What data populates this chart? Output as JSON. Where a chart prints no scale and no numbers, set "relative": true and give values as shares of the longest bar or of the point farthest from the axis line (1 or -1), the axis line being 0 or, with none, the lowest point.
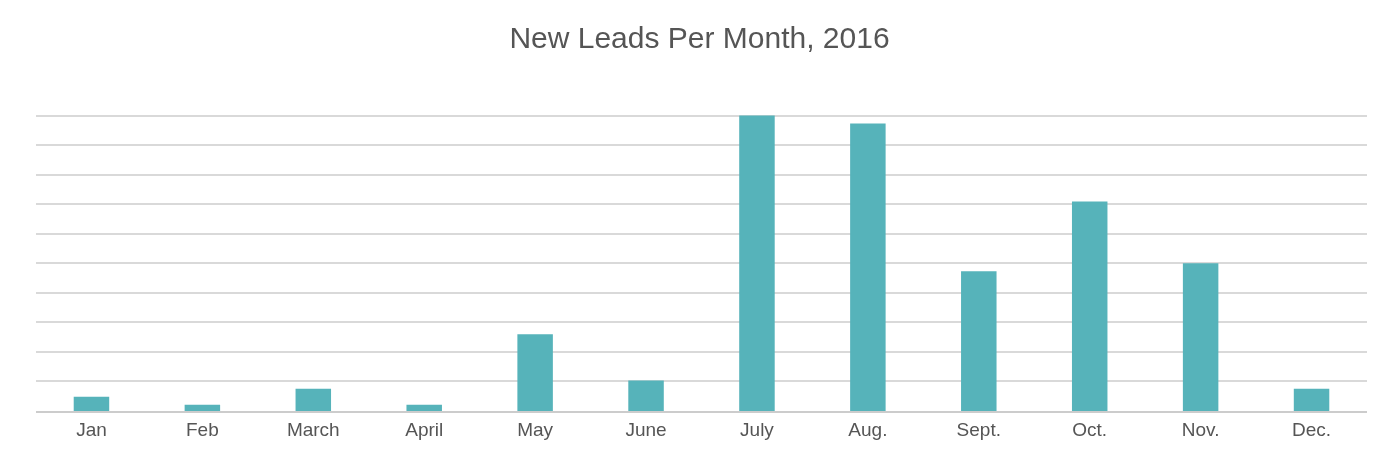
{
  "chart_data": {
    "type": "bar",
    "title": "New Leads Per Month, 2016",
    "categories": [
      "Jan",
      "Feb",
      "March",
      "April",
      "May",
      "June",
      "July",
      "Aug.",
      "Sept.",
      "Oct.",
      "Nov.",
      "Dec."
    ],
    "values": [
      0.048,
      0.021,
      0.075,
      0.021,
      0.26,
      0.103,
      1,
      0.973,
      0.473,
      0.709,
      0.5,
      0.075
    ],
    "color": "#56b3ba",
    "relative": true,
    "grid": "y"
  }
}
